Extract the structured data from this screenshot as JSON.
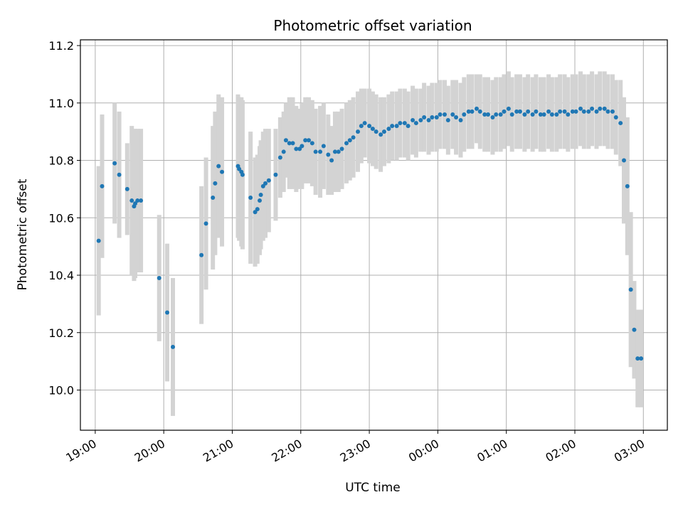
{
  "chart_data": {
    "type": "scatter",
    "title": "Photometric offset variation",
    "xlabel": "UTC time",
    "ylabel": "Photometric offset",
    "xlim": [
      "18:47",
      "03:21"
    ],
    "ylim": [
      9.86,
      11.22
    ],
    "x_ticks": [
      "19:00",
      "20:00",
      "21:00",
      "22:00",
      "23:00",
      "00:00",
      "01:00",
      "02:00",
      "03:00"
    ],
    "y_ticks": [
      "10.0",
      "10.2",
      "10.4",
      "10.6",
      "10.8",
      "11.0",
      "11.2"
    ],
    "grid": true,
    "colors": {
      "points": "#1f77b4",
      "error_bars": "#d3d3d3",
      "grid": "#b0b0b0"
    },
    "series": [
      {
        "x": [
          "19:03",
          "19:06",
          "19:17",
          "19:21",
          "19:28",
          "19:32",
          "19:34",
          "19:35",
          "19:37",
          "19:40",
          "19:56",
          "20:03",
          "20:08",
          "20:33",
          "20:37",
          "20:43",
          "20:45",
          "20:48",
          "20:51",
          "21:05",
          "21:06",
          "21:08",
          "21:09",
          "21:16",
          "21:20",
          "21:22",
          "21:24",
          "21:25",
          "21:27",
          "21:29",
          "21:32",
          "21:38",
          "21:42",
          "21:45",
          "21:47",
          "21:50",
          "21:53",
          "21:56",
          "21:59",
          "22:01",
          "22:04",
          "22:07",
          "22:10",
          "22:13",
          "22:17",
          "22:20",
          "22:24",
          "22:27",
          "22:30",
          "22:33",
          "22:36",
          "22:40",
          "22:43",
          "22:46",
          "22:50",
          "22:53",
          "22:56",
          "23:00",
          "23:03",
          "23:06",
          "23:10",
          "23:13",
          "23:17",
          "23:20",
          "23:24",
          "23:27",
          "23:31",
          "23:34",
          "23:38",
          "23:41",
          "23:45",
          "23:48",
          "23:52",
          "23:55",
          "23:59",
          "00:02",
          "00:06",
          "00:09",
          "00:13",
          "00:16",
          "00:20",
          "00:23",
          "00:27",
          "00:30",
          "00:34",
          "00:37",
          "00:41",
          "00:44",
          "00:48",
          "00:51",
          "00:55",
          "00:58",
          "01:02",
          "01:05",
          "01:09",
          "01:12",
          "01:16",
          "01:19",
          "01:23",
          "01:26",
          "01:30",
          "01:33",
          "01:37",
          "01:40",
          "01:44",
          "01:47",
          "01:51",
          "01:54",
          "01:58",
          "02:01",
          "02:05",
          "02:08",
          "02:12",
          "02:15",
          "02:19",
          "02:22",
          "02:26",
          "02:29",
          "02:33",
          "02:36",
          "02:40",
          "02:43",
          "02:46",
          "02:49",
          "02:52",
          "02:55",
          "02:58"
        ],
        "y": [
          10.52,
          10.71,
          10.79,
          10.75,
          10.7,
          10.66,
          10.64,
          10.65,
          10.66,
          10.66,
          10.39,
          10.27,
          10.15,
          10.47,
          10.58,
          10.67,
          10.72,
          10.78,
          10.76,
          10.78,
          10.77,
          10.76,
          10.75,
          10.67,
          10.62,
          10.63,
          10.66,
          10.68,
          10.71,
          10.72,
          10.73,
          10.75,
          10.81,
          10.83,
          10.87,
          10.86,
          10.86,
          10.84,
          10.84,
          10.85,
          10.87,
          10.87,
          10.86,
          10.83,
          10.83,
          10.85,
          10.82,
          10.8,
          10.83,
          10.83,
          10.84,
          10.86,
          10.87,
          10.88,
          10.9,
          10.92,
          10.93,
          10.92,
          10.91,
          10.9,
          10.89,
          10.9,
          10.91,
          10.92,
          10.92,
          10.93,
          10.93,
          10.92,
          10.94,
          10.93,
          10.94,
          10.95,
          10.94,
          10.95,
          10.95,
          10.96,
          10.96,
          10.94,
          10.96,
          10.95,
          10.94,
          10.96,
          10.97,
          10.97,
          10.98,
          10.97,
          10.96,
          10.96,
          10.95,
          10.96,
          10.96,
          10.97,
          10.98,
          10.96,
          10.97,
          10.97,
          10.96,
          10.97,
          10.96,
          10.97,
          10.96,
          10.96,
          10.97,
          10.96,
          10.96,
          10.97,
          10.97,
          10.96,
          10.97,
          10.97,
          10.98,
          10.97,
          10.97,
          10.98,
          10.97,
          10.98,
          10.98,
          10.97,
          10.97,
          10.95,
          10.93,
          10.8,
          10.71,
          10.35,
          10.21,
          10.11,
          10.11
        ],
        "err": [
          0.26,
          0.25,
          0.21,
          0.22,
          0.16,
          0.26,
          0.26,
          0.26,
          0.25,
          0.25,
          0.22,
          0.24,
          0.24,
          0.24,
          0.23,
          0.25,
          0.25,
          0.25,
          0.26,
          0.25,
          0.25,
          0.26,
          0.26,
          0.23,
          0.19,
          0.19,
          0.19,
          0.19,
          0.19,
          0.19,
          0.18,
          0.16,
          0.14,
          0.14,
          0.13,
          0.16,
          0.16,
          0.15,
          0.14,
          0.15,
          0.15,
          0.15,
          0.15,
          0.15,
          0.16,
          0.15,
          0.14,
          0.12,
          0.14,
          0.14,
          0.14,
          0.14,
          0.14,
          0.14,
          0.14,
          0.13,
          0.12,
          0.13,
          0.13,
          0.13,
          0.13,
          0.12,
          0.12,
          0.12,
          0.12,
          0.12,
          0.12,
          0.12,
          0.12,
          0.12,
          0.11,
          0.12,
          0.12,
          0.12,
          0.12,
          0.12,
          0.12,
          0.12,
          0.12,
          0.13,
          0.13,
          0.13,
          0.13,
          0.13,
          0.12,
          0.13,
          0.13,
          0.13,
          0.13,
          0.13,
          0.13,
          0.13,
          0.13,
          0.13,
          0.13,
          0.13,
          0.13,
          0.13,
          0.13,
          0.13,
          0.13,
          0.13,
          0.13,
          0.13,
          0.13,
          0.13,
          0.13,
          0.13,
          0.13,
          0.13,
          0.13,
          0.13,
          0.13,
          0.13,
          0.13,
          0.13,
          0.13,
          0.13,
          0.13,
          0.13,
          0.15,
          0.22,
          0.24,
          0.27,
          0.17,
          0.17,
          0.17
        ]
      }
    ]
  }
}
